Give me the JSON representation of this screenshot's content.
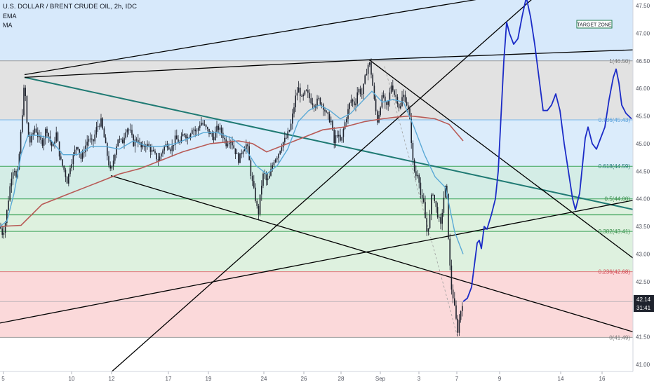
{
  "legend": {
    "title": "U.S. DOLLAR / BRENT CRUDE OIL, 2h, IDC",
    "indicators": [
      "EMA",
      "MA"
    ]
  },
  "annotation": {
    "target_zone": "TARGET ZONE"
  },
  "price_axis": {
    "current_price": "42.14",
    "countdown": "31:41"
  },
  "colors": {
    "target_band": "#d7e9fb",
    "band_grey": "#e2e2e2",
    "band_blue": "#dbecfb",
    "band_teal": "#d4ede6",
    "band_green": "#def1df",
    "band_red": "#fbd9da",
    "candle": "#1e222d",
    "ema": "#5aa9d6",
    "ma": "#b85a56",
    "projection": "#1b2bc7",
    "trend_teal": "#1f7a73",
    "trend_black": "#000000",
    "fib_line_grey": "#9e9e9e",
    "fib_line_blue": "#7ab7e8",
    "fib_line_green": "#3da35a",
    "fib_line_red": "#e07a7d",
    "fib_text_grey": "#777777",
    "fib_text_blue": "#5aa0da",
    "fib_text_teal": "#1f7a73",
    "fib_text_green": "#3a8d4a",
    "fib_text_red": "#d0454f"
  },
  "chart_data": {
    "type": "line",
    "title": "U.S. DOLLAR / BRENT CRUDE OIL, 2h, IDC",
    "xlabel": "",
    "ylabel": "",
    "ylim": [
      40.8,
      47.75
    ],
    "y_ticks": [
      41.0,
      41.5,
      42.0,
      42.5,
      43.0,
      43.5,
      44.0,
      44.5,
      45.0,
      45.5,
      46.0,
      46.5,
      47.0,
      47.5
    ],
    "x_ticks": [
      {
        "label": "5",
        "bar": 4.5
      },
      {
        "label": "10",
        "bar": 102
      },
      {
        "label": "12",
        "bar": 159
      },
      {
        "label": "17",
        "bar": 240
      },
      {
        "label": "19",
        "bar": 297
      },
      {
        "label": "24",
        "bar": 376
      },
      {
        "label": "26",
        "bar": 433
      },
      {
        "label": "28",
        "bar": 486
      },
      {
        "label": "Sep",
        "bar": 542
      },
      {
        "label": "3",
        "bar": 597
      },
      {
        "label": "7",
        "bar": 651
      },
      {
        "label": "9",
        "bar": 712
      },
      {
        "label": "14",
        "bar": 799
      },
      {
        "label": "16",
        "bar": 858
      }
    ],
    "fib_levels": [
      {
        "label": "1(46.50)",
        "value": 46.5
      },
      {
        "label": "0.786(45.43)",
        "value": 45.43
      },
      {
        "label": "0.618(44.59)",
        "value": 44.59
      },
      {
        "label": "0.5(44.00)",
        "value": 44.0
      },
      {
        "label": "0.382(43.41)",
        "value": 43.41
      },
      {
        "label": "0.236(42.68)",
        "value": 42.68
      },
      {
        "label": "0(41.49)",
        "value": 41.49
      }
    ],
    "extra_levels": [
      43.71,
      42.14
    ],
    "target_zone_low": 46.5,
    "price_series": {
      "name": "",
      "points": [
        [
          0,
          43.5
        ],
        [
          4,
          43.35
        ],
        [
          8,
          43.6
        ],
        [
          12,
          44.0
        ],
        [
          16,
          44.4
        ],
        [
          20,
          44.6
        ],
        [
          24,
          44.3
        ],
        [
          28,
          44.9
        ],
        [
          32,
          45.6
        ],
        [
          35,
          46.15
        ],
        [
          38,
          45.4
        ],
        [
          42,
          45.0
        ],
        [
          46,
          45.15
        ],
        [
          50,
          45.3
        ],
        [
          55,
          45.1
        ],
        [
          60,
          45.0
        ],
        [
          66,
          45.3
        ],
        [
          70,
          45.1
        ],
        [
          75,
          44.9
        ],
        [
          80,
          45.2
        ],
        [
          86,
          44.7
        ],
        [
          92,
          44.5
        ],
        [
          96,
          44.3
        ],
        [
          100,
          44.6
        ],
        [
          105,
          44.8
        ],
        [
          110,
          45.0
        ],
        [
          116,
          44.7
        ],
        [
          120,
          44.9
        ],
        [
          126,
          45.1
        ],
        [
          132,
          45.0
        ],
        [
          138,
          45.3
        ],
        [
          144,
          45.4
        ],
        [
          150,
          45.0
        ],
        [
          154,
          44.7
        ],
        [
          158,
          44.45
        ],
        [
          163,
          44.8
        ],
        [
          168,
          45.1
        ],
        [
          174,
          45.0
        ],
        [
          180,
          45.3
        ],
        [
          186,
          45.2
        ],
        [
          190,
          45.0
        ],
        [
          195,
          45.1
        ],
        [
          202,
          44.9
        ],
        [
          208,
          45.0
        ],
        [
          214,
          44.9
        ],
        [
          220,
          44.8
        ],
        [
          226,
          44.7
        ],
        [
          232,
          44.9
        ],
        [
          238,
          45.0
        ],
        [
          244,
          44.9
        ],
        [
          250,
          45.1
        ],
        [
          256,
          45.0
        ],
        [
          262,
          45.2
        ],
        [
          268,
          45.1
        ],
        [
          274,
          45.3
        ],
        [
          280,
          45.2
        ],
        [
          286,
          45.4
        ],
        [
          292,
          45.3
        ],
        [
          298,
          45.2
        ],
        [
          304,
          45.1
        ],
        [
          310,
          45.3
        ],
        [
          316,
          45.2
        ],
        [
          322,
          45.0
        ],
        [
          328,
          45.1
        ],
        [
          334,
          44.9
        ],
        [
          340,
          44.7
        ],
        [
          346,
          44.9
        ],
        [
          352,
          45.0
        ],
        [
          358,
          44.4
        ],
        [
          364,
          44.0
        ],
        [
          368,
          43.7
        ],
        [
          372,
          44.2
        ],
        [
          376,
          44.5
        ],
        [
          380,
          44.3
        ],
        [
          384,
          44.4
        ],
        [
          390,
          44.7
        ],
        [
          396,
          44.8
        ],
        [
          402,
          45.0
        ],
        [
          408,
          45.1
        ],
        [
          414,
          45.3
        ],
        [
          418,
          45.6
        ],
        [
          422,
          45.9
        ],
        [
          426,
          46.0
        ],
        [
          430,
          45.8
        ],
        [
          436,
          45.95
        ],
        [
          442,
          45.8
        ],
        [
          448,
          45.7
        ],
        [
          454,
          45.8
        ],
        [
          460,
          45.7
        ],
        [
          466,
          45.5
        ],
        [
          472,
          45.4
        ],
        [
          476,
          45.0
        ],
        [
          480,
          45.2
        ],
        [
          486,
          45.0
        ],
        [
          490,
          45.3
        ],
        [
          494,
          45.5
        ],
        [
          500,
          45.8
        ],
        [
          506,
          45.7
        ],
        [
          510,
          46.0
        ],
        [
          516,
          45.9
        ],
        [
          522,
          46.3
        ],
        [
          526,
          46.5
        ],
        [
          530,
          46.2
        ],
        [
          534,
          45.7
        ],
        [
          538,
          45.4
        ],
        [
          542,
          45.7
        ],
        [
          546,
          45.9
        ],
        [
          550,
          45.6
        ],
        [
          554,
          45.8
        ],
        [
          558,
          46.1
        ],
        [
          562,
          45.9
        ],
        [
          566,
          45.8
        ],
        [
          570,
          45.6
        ],
        [
          574,
          45.9
        ],
        [
          578,
          45.8
        ],
        [
          582,
          45.6
        ],
        [
          585,
          45.3
        ],
        [
          588,
          44.7
        ],
        [
          592,
          44.4
        ],
        [
          596,
          44.5
        ],
        [
          600,
          44.0
        ],
        [
          604,
          43.9
        ],
        [
          608,
          43.4
        ],
        [
          612,
          43.6
        ],
        [
          616,
          44.2
        ],
        [
          620,
          43.9
        ],
        [
          624,
          43.7
        ],
        [
          628,
          43.5
        ],
        [
          632,
          44.0
        ],
        [
          636,
          44.3
        ],
        [
          640,
          43.0
        ],
        [
          643,
          42.4
        ],
        [
          646,
          42.2
        ],
        [
          649,
          41.9
        ],
        [
          652,
          41.6
        ],
        [
          655,
          41.85
        ],
        [
          658,
          42.1
        ],
        [
          660,
          42.14
        ]
      ]
    },
    "ema_series": {
      "name": "EMA",
      "points": [
        [
          0,
          43.5
        ],
        [
          10,
          43.6
        ],
        [
          20,
          44.1
        ],
        [
          30,
          44.8
        ],
        [
          40,
          45.15
        ],
        [
          55,
          45.15
        ],
        [
          70,
          45.1
        ],
        [
          90,
          44.8
        ],
        [
          110,
          44.8
        ],
        [
          130,
          44.95
        ],
        [
          150,
          44.95
        ],
        [
          170,
          44.9
        ],
        [
          190,
          45.05
        ],
        [
          210,
          44.95
        ],
        [
          230,
          44.95
        ],
        [
          250,
          45.0
        ],
        [
          270,
          45.1
        ],
        [
          290,
          45.2
        ],
        [
          310,
          45.2
        ],
        [
          330,
          45.1
        ],
        [
          350,
          44.9
        ],
        [
          365,
          44.6
        ],
        [
          380,
          44.45
        ],
        [
          395,
          44.6
        ],
        [
          410,
          44.9
        ],
        [
          425,
          45.4
        ],
        [
          440,
          45.6
        ],
        [
          455,
          45.7
        ],
        [
          470,
          45.6
        ],
        [
          485,
          45.45
        ],
        [
          500,
          45.55
        ],
        [
          515,
          45.75
        ],
        [
          530,
          45.95
        ],
        [
          545,
          45.75
        ],
        [
          560,
          45.8
        ],
        [
          575,
          45.75
        ],
        [
          590,
          45.3
        ],
        [
          605,
          44.8
        ],
        [
          620,
          44.4
        ],
        [
          635,
          44.2
        ],
        [
          648,
          43.4
        ],
        [
          660,
          43.0
        ]
      ]
    },
    "ma_series": {
      "name": "MA",
      "points": [
        [
          0,
          43.5
        ],
        [
          30,
          43.52
        ],
        [
          60,
          43.9
        ],
        [
          100,
          44.1
        ],
        [
          140,
          44.3
        ],
        [
          170,
          44.45
        ],
        [
          200,
          44.55
        ],
        [
          230,
          44.7
        ],
        [
          260,
          44.85
        ],
        [
          300,
          45.0
        ],
        [
          340,
          45.05
        ],
        [
          360,
          45.0
        ],
        [
          380,
          44.85
        ],
        [
          400,
          44.95
        ],
        [
          430,
          45.1
        ],
        [
          460,
          45.25
        ],
        [
          490,
          45.3
        ],
        [
          520,
          45.4
        ],
        [
          545,
          45.45
        ],
        [
          565,
          45.48
        ],
        [
          585,
          45.5
        ],
        [
          600,
          45.48
        ],
        [
          620,
          45.45
        ],
        [
          640,
          45.35
        ],
        [
          660,
          45.05
        ]
      ]
    },
    "projection_series": {
      "name": "",
      "points": [
        [
          660,
          42.14
        ],
        [
          666,
          42.2
        ],
        [
          672,
          42.4
        ],
        [
          676,
          42.8
        ],
        [
          680,
          43.2
        ],
        [
          683,
          43.25
        ],
        [
          686,
          43.1
        ],
        [
          690,
          43.5
        ],
        [
          694,
          43.45
        ],
        [
          700,
          43.7
        ],
        [
          706,
          44.0
        ],
        [
          710,
          44.5
        ],
        [
          714,
          45.5
        ],
        [
          718,
          46.5
        ],
        [
          722,
          47.2
        ],
        [
          726,
          47.0
        ],
        [
          732,
          46.8
        ],
        [
          738,
          46.9
        ],
        [
          744,
          47.3
        ],
        [
          750,
          47.65
        ],
        [
          756,
          47.3
        ],
        [
          762,
          46.8
        ],
        [
          768,
          46.2
        ],
        [
          774,
          45.6
        ],
        [
          780,
          45.6
        ],
        [
          786,
          45.7
        ],
        [
          792,
          45.9
        ],
        [
          798,
          45.6
        ],
        [
          804,
          45.0
        ],
        [
          810,
          44.5
        ],
        [
          816,
          44.0
        ],
        [
          820,
          43.8
        ],
        [
          826,
          44.1
        ],
        [
          830,
          44.6
        ],
        [
          834,
          45.1
        ],
        [
          838,
          45.3
        ],
        [
          844,
          45.0
        ],
        [
          850,
          44.9
        ],
        [
          856,
          45.1
        ],
        [
          862,
          45.3
        ],
        [
          868,
          45.8
        ],
        [
          874,
          46.2
        ],
        [
          878,
          46.35
        ],
        [
          882,
          46.1
        ],
        [
          886,
          45.7
        ],
        [
          892,
          45.55
        ],
        [
          900,
          45.45
        ]
      ]
    },
    "trend_lines": [
      {
        "style": "teal",
        "from": [
          35,
          46.2
        ],
        "to": [
          905,
          43.8
        ]
      },
      {
        "style": "black",
        "from": [
          35,
          46.2
        ],
        "to": [
          526,
          46.52
        ]
      },
      {
        "style": "black",
        "from": [
          526,
          46.52
        ],
        "to": [
          905,
          46.7
        ]
      },
      {
        "style": "black",
        "from": [
          158,
          44.42
        ],
        "to": [
          905,
          41.58
        ]
      },
      {
        "style": "black",
        "from": [
          0,
          41.75
        ],
        "to": [
          905,
          43.98
        ]
      },
      {
        "style": "black",
        "from": [
          153,
          40.8
        ],
        "to": [
          770,
          47.75
        ]
      },
      {
        "style": "black",
        "from": [
          35,
          46.25
        ],
        "to": [
          745,
          47.75
        ]
      },
      {
        "style": "black",
        "from": [
          526,
          46.52
        ],
        "to": [
          905,
          42.9
        ]
      }
    ],
    "dashed_line": {
      "from": [
        548,
        46.4
      ],
      "to": [
        652,
        41.5
      ]
    }
  }
}
